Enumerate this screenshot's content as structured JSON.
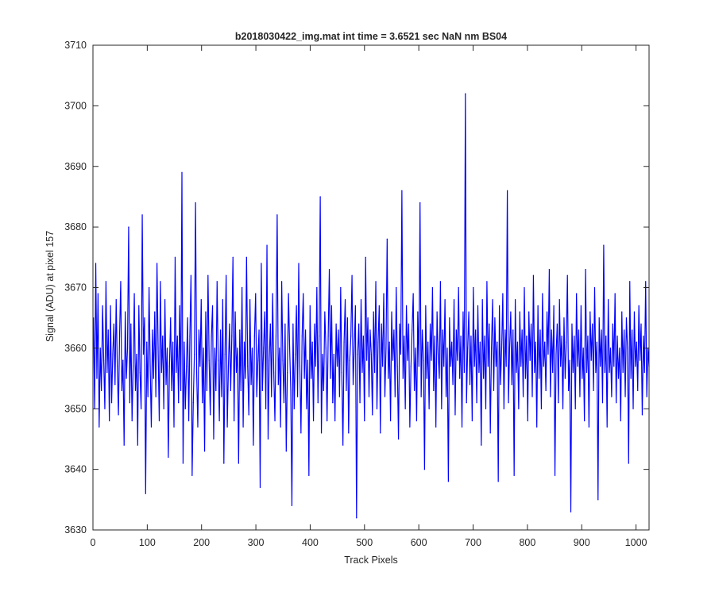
{
  "figure": {
    "background": "#ffffff",
    "axes_color": "#262626"
  },
  "chart_data": {
    "type": "line",
    "title": "b2018030422_img.mat int time = 3.6521 sec  NaN nm BS04",
    "xlabel": "Track Pixels",
    "ylabel": "Signal (ADU) at pixel 157",
    "xlim": [
      0,
      1024
    ],
    "ylim": [
      3630,
      3710
    ],
    "xticks": [
      0,
      100,
      200,
      300,
      400,
      500,
      600,
      700,
      800,
      900,
      1000
    ],
    "yticks": [
      3630,
      3640,
      3650,
      3660,
      3670,
      3680,
      3690,
      3700,
      3710
    ],
    "grid": false,
    "legend": "none",
    "series": [
      {
        "color": "#0000ff",
        "x_start": 1,
        "x_step": 1,
        "values": [
          3665,
          3650,
          3674,
          3655,
          3669,
          3647,
          3660,
          3653,
          3667,
          3658,
          3650,
          3671,
          3656,
          3663,
          3648,
          3667,
          3651,
          3659,
          3664,
          3654,
          3668,
          3657,
          3649,
          3662,
          3671,
          3653,
          3658,
          3644,
          3666,
          3655,
          3660,
          3680,
          3651,
          3664,
          3648,
          3657,
          3669,
          3653,
          3659,
          3644,
          3667,
          3656,
          3650,
          3682,
          3659,
          3665,
          3636,
          3661,
          3652,
          3670,
          3657,
          3647,
          3663,
          3655,
          3666,
          3652,
          3674,
          3660,
          3648,
          3671,
          3656,
          3662,
          3650,
          3668,
          3654,
          3660,
          3642,
          3657,
          3665,
          3653,
          3661,
          3647,
          3675,
          3656,
          3662,
          3651,
          3667,
          3653,
          3689,
          3641,
          3661,
          3650,
          3657,
          3665,
          3648,
          3662,
          3672,
          3639,
          3651,
          3659,
          3684,
          3656,
          3647,
          3663,
          3657,
          3668,
          3651,
          3660,
          3643,
          3666,
          3653,
          3672,
          3658,
          3649,
          3662,
          3667,
          3645,
          3660,
          3653,
          3671,
          3658,
          3648,
          3663,
          3652,
          3668,
          3641,
          3659,
          3672,
          3647,
          3657,
          3664,
          3653,
          3662,
          3675,
          3648,
          3666,
          3656,
          3660,
          3641,
          3663,
          3653,
          3670,
          3647,
          3661,
          3655,
          3675,
          3657,
          3649,
          3668,
          3654,
          3660,
          3644,
          3662,
          3669,
          3652,
          3658,
          3663,
          3637,
          3674,
          3653,
          3660,
          3666,
          3650,
          3677,
          3645,
          3658,
          3664,
          3652,
          3669,
          3656,
          3648,
          3662,
          3682,
          3654,
          3660,
          3647,
          3671,
          3658,
          3651,
          3664,
          3643,
          3656,
          3669,
          3660,
          3653,
          3634,
          3664,
          3650,
          3659,
          3667,
          3652,
          3674,
          3657,
          3646,
          3662,
          3669,
          3655,
          3663,
          3650,
          3658,
          3639,
          3667,
          3655,
          3661,
          3648,
          3664,
          3657,
          3670,
          3651,
          3662,
          3685,
          3646,
          3659,
          3653,
          3666,
          3660,
          3648,
          3662,
          3673,
          3655,
          3667,
          3651,
          3659,
          3648,
          3664,
          3657,
          3663,
          3652,
          3670,
          3656,
          3644,
          3661,
          3668,
          3653,
          3665,
          3646,
          3658,
          3662,
          3672,
          3654,
          3660,
          3667,
          3632,
          3659,
          3664,
          3651,
          3668,
          3656,
          3662,
          3648,
          3675,
          3658,
          3665,
          3652,
          3663,
          3659,
          3649,
          3666,
          3656,
          3671,
          3650,
          3661,
          3667,
          3646,
          3664,
          3657,
          3669,
          3652,
          3660,
          3678,
          3655,
          3661,
          3648,
          3666,
          3658,
          3663,
          3652,
          3670,
          3657,
          3645,
          3664,
          3659,
          3686,
          3655,
          3662,
          3650,
          3667,
          3658,
          3664,
          3647,
          3657,
          3663,
          3669,
          3653,
          3660,
          3648,
          3666,
          3657,
          3684,
          3652,
          3663,
          3658,
          3640,
          3667,
          3655,
          3661,
          3650,
          3664,
          3658,
          3670,
          3653,
          3662,
          3647,
          3666,
          3659,
          3655,
          3671,
          3650,
          3663,
          3657,
          3668,
          3652,
          3660,
          3638,
          3665,
          3657,
          3661,
          3654,
          3668,
          3649,
          3663,
          3658,
          3670,
          3655,
          3662,
          3647,
          3666,
          3656,
          3702,
          3651,
          3660,
          3666,
          3654,
          3662,
          3648,
          3670,
          3657,
          3663,
          3651,
          3667,
          3656,
          3661,
          3644,
          3668,
          3655,
          3662,
          3650,
          3671,
          3657,
          3664,
          3646,
          3660,
          3668,
          3653,
          3665,
          3657,
          3661,
          3638,
          3667,
          3654,
          3660,
          3669,
          3650,
          3663,
          3657,
          3686,
          3651,
          3660,
          3666,
          3654,
          3663,
          3639,
          3668,
          3656,
          3661,
          3650,
          3666,
          3657,
          3663,
          3652,
          3670,
          3655,
          3662,
          3648,
          3666,
          3658,
          3664,
          3652,
          3672,
          3656,
          3661,
          3647,
          3667,
          3655,
          3663,
          3650,
          3669,
          3657,
          3661,
          3653,
          3666,
          3659,
          3673,
          3652,
          3663,
          3656,
          3667,
          3639,
          3659,
          3664,
          3651,
          3668,
          3657,
          3662,
          3650,
          3665,
          3655,
          3661,
          3672,
          3653,
          3658,
          3633,
          3664,
          3656,
          3662,
          3650,
          3669,
          3657,
          3663,
          3652,
          3667,
          3655,
          3660,
          3648,
          3673,
          3656,
          3662,
          3647,
          3666,
          3658,
          3664,
          3653,
          3670,
          3656,
          3661,
          3635,
          3665,
          3657,
          3663,
          3651,
          3677,
          3656,
          3662,
          3647,
          3668,
          3656,
          3660,
          3652,
          3664,
          3657,
          3669,
          3651,
          3662,
          3655,
          3660,
          3648,
          3666,
          3656,
          3663,
          3652,
          3665,
          3660,
          3641,
          3671,
          3655,
          3663,
          3650,
          3666,
          3657,
          3661,
          3653,
          3667,
          3658,
          3664,
          3649,
          3662,
          3656,
          3671,
          3652,
          3660,
          3657
        ]
      }
    ]
  }
}
